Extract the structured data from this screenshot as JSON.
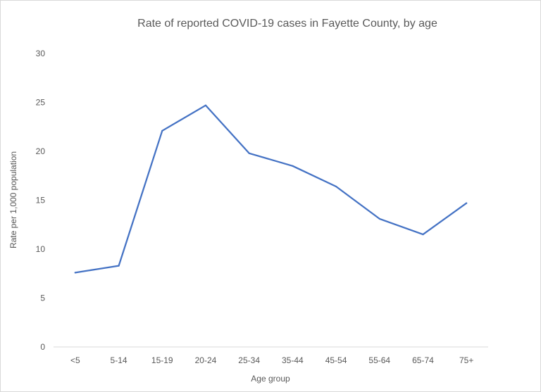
{
  "chart_data": {
    "type": "line",
    "title": "Rate of reported COVID-19 cases in Fayette County, by age",
    "xlabel": "Age group",
    "ylabel": "Rate per 1,000 population",
    "categories": [
      "<5",
      "5-14",
      "15-19",
      "20-24",
      "25-34",
      "35-44",
      "45-54",
      "55-64",
      "65-74",
      "75+"
    ],
    "series": [
      {
        "values": [
          7.6,
          8.3,
          22.1,
          24.7,
          19.8,
          18.5,
          16.4,
          13.1,
          11.5,
          14.7
        ],
        "color": "#4472c4"
      }
    ],
    "ylim": [
      0,
      30
    ],
    "yticks": [
      "0",
      "5",
      "10",
      "15",
      "20",
      "25",
      "30"
    ],
    "grid": false,
    "legend": "none",
    "colors": {
      "line": "#4472c4",
      "text": "#595959",
      "axis": "#d9d9d9"
    }
  }
}
